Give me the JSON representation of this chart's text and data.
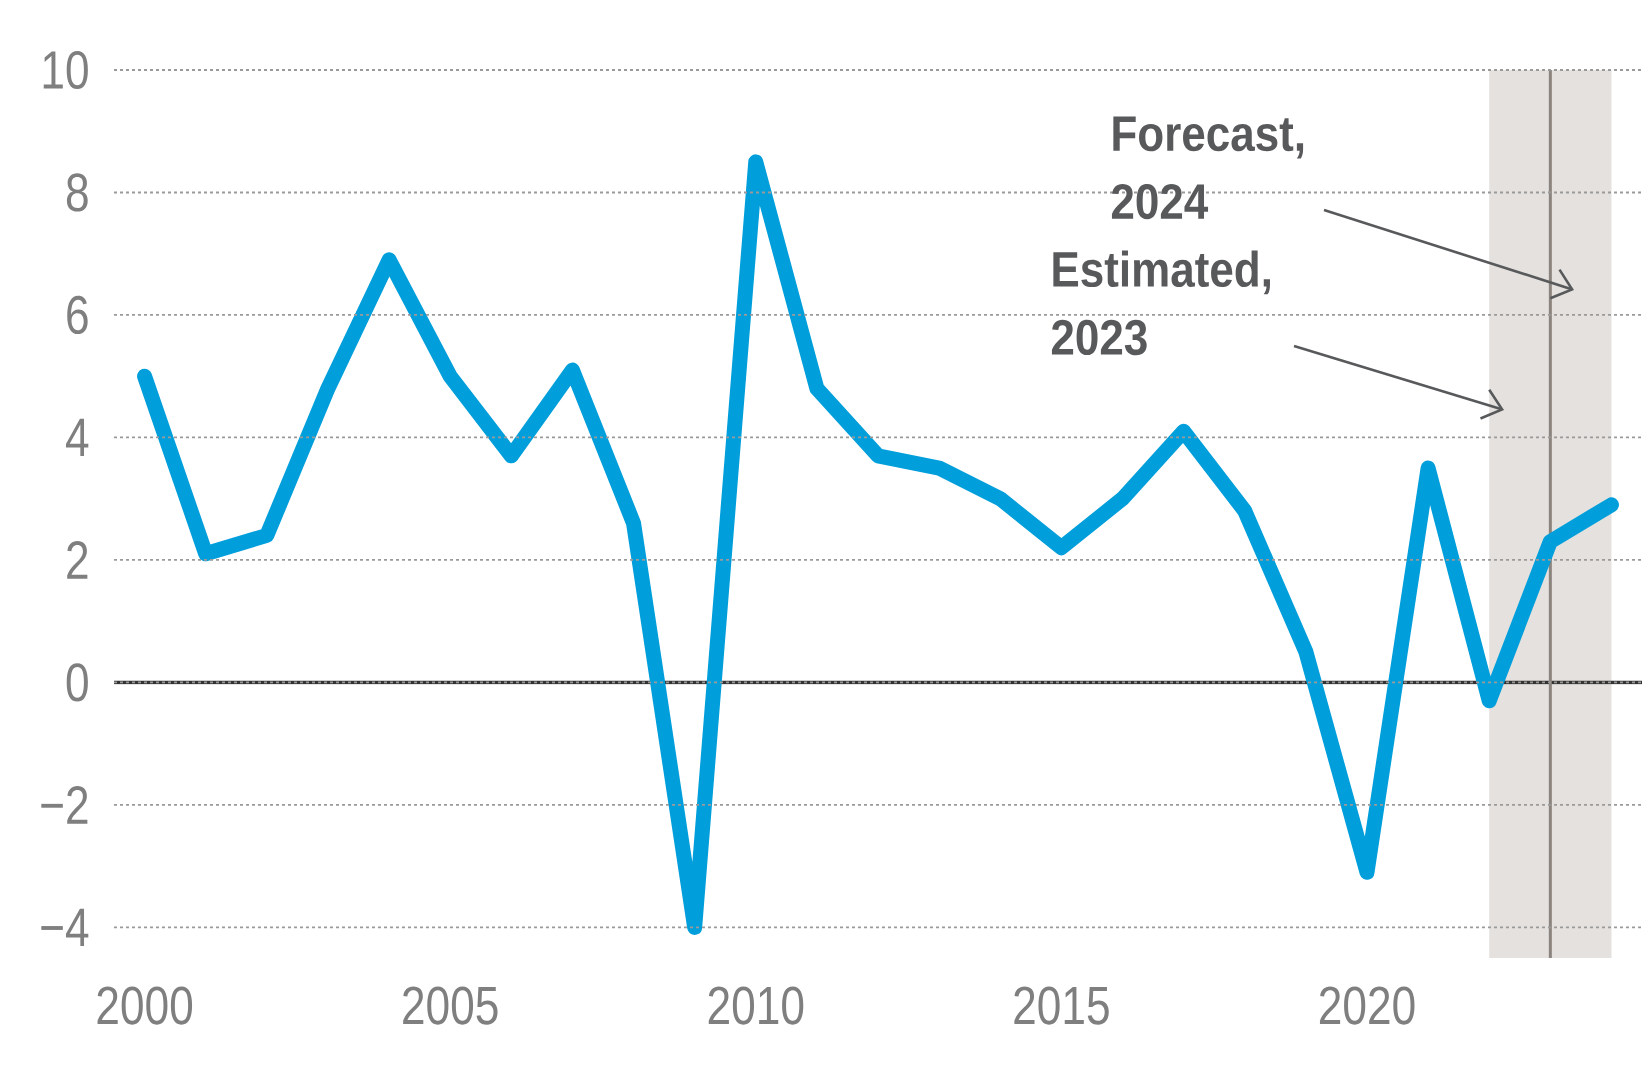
{
  "chart_data": {
    "type": "line",
    "annotations": [
      "Forecast, 2024",
      "Estimated, 2023"
    ],
    "x": [
      2000,
      2001,
      2002,
      2003,
      2004,
      2005,
      2006,
      2007,
      2008,
      2009,
      2010,
      2011,
      2012,
      2013,
      2014,
      2015,
      2016,
      2017,
      2018,
      2019,
      2020,
      2021,
      2022,
      2023,
      2024
    ],
    "series": [
      {
        "color": "#009fdb",
        "values": [
          5.0,
          2.1,
          2.4,
          4.8,
          6.9,
          5.0,
          3.7,
          5.1,
          2.6,
          -4.0,
          8.5,
          4.8,
          3.7,
          3.5,
          3.0,
          2.2,
          3.0,
          4.1,
          2.8,
          0.5,
          -3.1,
          3.5,
          -0.3,
          2.3,
          2.9
        ]
      }
    ],
    "xlim": [
      1999.5,
      2024.5
    ],
    "ylim": [
      -4.5,
      10
    ],
    "xticks": [
      2000,
      2005,
      2010,
      2015,
      2020
    ],
    "yticks": [
      {
        "value": -4,
        "label": "−4"
      },
      {
        "value": -2,
        "label": "−2"
      },
      0,
      2,
      4,
      6,
      8,
      10
    ],
    "grid": "y",
    "line_style": "solid",
    "bands": [
      {
        "axis": "x",
        "from": 2022,
        "to": 2024,
        "color": "#e4e1de"
      }
    ],
    "ref_lines": [
      {
        "axis": "y",
        "value": 0,
        "color": "#333333"
      },
      {
        "axis": "x",
        "value": 2023,
        "color": "#8b847e"
      }
    ]
  }
}
